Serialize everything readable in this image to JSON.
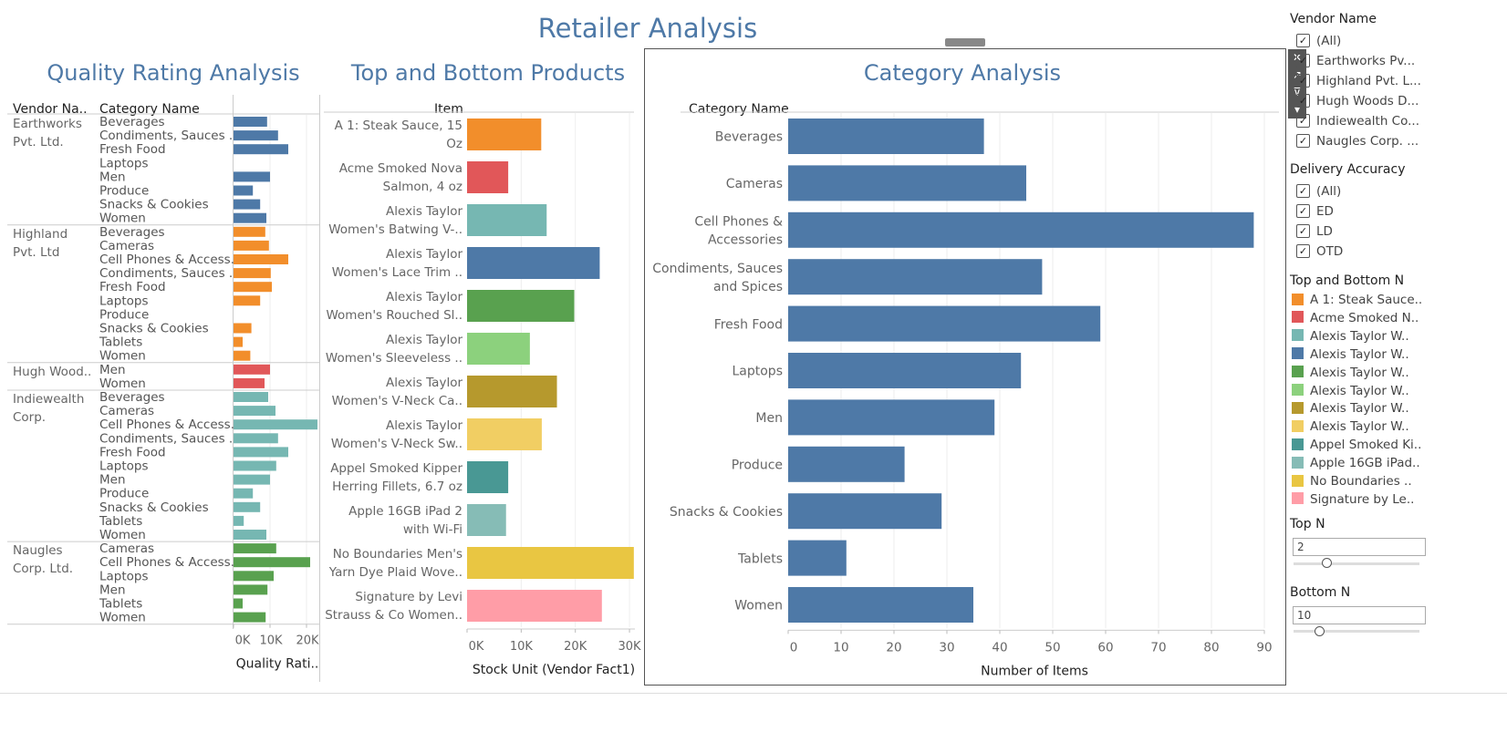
{
  "dashboard_title": "Retailer Analysis",
  "quality": {
    "title": "Quality Rating Analysis",
    "col_vendor": "Vendor Na..",
    "col_category": "Category Name",
    "axis_title": "Quality Rati..",
    "ticks": [
      "0K",
      "10K",
      "20K"
    ]
  },
  "topbottom": {
    "title": "Top and Bottom Products",
    "col_item": "Item",
    "axis_title": "Stock Unit (Vendor Fact1)",
    "ticks": [
      "0K",
      "10K",
      "20K",
      "30K"
    ]
  },
  "category": {
    "title": "Category Analysis",
    "col_category": "Category Name",
    "axis_title": "Number of Items",
    "ticks": [
      "0",
      "10",
      "20",
      "30",
      "40",
      "50",
      "60",
      "70",
      "80",
      "90"
    ]
  },
  "colors": {
    "title_blue": "#4e79a7",
    "bar_blue": "#4e79a7",
    "vendor": [
      "#4e79a7",
      "#f28e2b",
      "#e15759",
      "#76b7b2",
      "#59a14f"
    ]
  },
  "chart_data": [
    {
      "type": "bar",
      "orientation": "horizontal",
      "title": "Quality Rating Analysis",
      "xlabel": "Quality Rati..",
      "xlim": [
        0,
        23000
      ],
      "groups": [
        {
          "vendor": [
            "Earthworks",
            "Pvt. Ltd."
          ],
          "color": "#4e79a7",
          "categories": [
            "Beverages",
            "Condiments, Sauces ..",
            "Fresh Food",
            "Laptops",
            "Men",
            "Produce",
            "Snacks & Cookies",
            "Women"
          ],
          "values": [
            9200,
            12200,
            15000,
            0,
            10000,
            5300,
            7300,
            9000
          ]
        },
        {
          "vendor": [
            "Highland",
            "Pvt. Ltd"
          ],
          "color": "#f28e2b",
          "categories": [
            "Beverages",
            "Cameras",
            "Cell Phones & Access..",
            "Condiments, Sauces ..",
            "Fresh Food",
            "Laptops",
            "Produce",
            "Snacks & Cookies",
            "Tablets",
            "Women"
          ],
          "values": [
            8700,
            9700,
            15000,
            10200,
            10500,
            7300,
            0,
            4900,
            2500,
            4600
          ]
        },
        {
          "vendor": [
            "Hugh Wood.."
          ],
          "color": "#e15759",
          "categories": [
            "Men",
            "Women"
          ],
          "values": [
            10000,
            8500
          ]
        },
        {
          "vendor": [
            "Indiewealth",
            "Corp."
          ],
          "color": "#76b7b2",
          "categories": [
            "Beverages",
            "Cameras",
            "Cell Phones & Access..",
            "Condiments, Sauces ..",
            "Fresh Food",
            "Laptops",
            "Men",
            "Produce",
            "Snacks & Cookies",
            "Tablets",
            "Women"
          ],
          "values": [
            9500,
            11500,
            23000,
            12200,
            15000,
            11700,
            10000,
            5300,
            7300,
            2800,
            9000
          ]
        },
        {
          "vendor": [
            "Naugles",
            "Corp. Ltd."
          ],
          "color": "#59a14f",
          "categories": [
            "Cameras",
            "Cell Phones & Access..",
            "Laptops",
            "Men",
            "Tablets",
            "Women"
          ],
          "values": [
            11700,
            21000,
            11000,
            9300,
            2500,
            8800
          ]
        }
      ]
    },
    {
      "type": "bar",
      "orientation": "horizontal",
      "title": "Top and Bottom Products",
      "xlabel": "Stock Unit (Vendor Fact1)",
      "xlim": [
        0,
        31000
      ],
      "items": [
        [
          "A 1: Steak Sauce, 15",
          "Oz"
        ],
        [
          "Acme Smoked Nova",
          "Salmon, 4 oz"
        ],
        [
          "Alexis Taylor",
          "Women's Batwing V-.."
        ],
        [
          "Alexis Taylor",
          "Women's Lace Trim .."
        ],
        [
          "Alexis Taylor",
          "Women's Rouched Sl.."
        ],
        [
          "Alexis Taylor",
          "Women's Sleeveless .."
        ],
        [
          "Alexis Taylor",
          "Women's V-Neck Ca.."
        ],
        [
          "Alexis Taylor",
          "Women's V-Neck Sw.."
        ],
        [
          "Appel Smoked Kipper",
          "Herring Fillets, 6.7 oz"
        ],
        [
          "Apple 16GB iPad 2",
          "with Wi-Fi"
        ],
        [
          "No Boundaries Men's",
          "Yarn Dye Plaid Wove.."
        ],
        [
          "Signature by Levi",
          "Strauss & Co Women.."
        ]
      ],
      "values": [
        13700,
        7600,
        14700,
        24500,
        19800,
        11600,
        16600,
        13800,
        7600,
        7200,
        30800,
        24900
      ],
      "colors": [
        "#f28e2b",
        "#e15759",
        "#76b7b2",
        "#4e79a7",
        "#59a14f",
        "#8cd17d",
        "#b6992d",
        "#f1ce63",
        "#499894",
        "#86bcb6",
        "#e9c642",
        "#ff9da7"
      ]
    },
    {
      "type": "bar",
      "orientation": "horizontal",
      "title": "Category Analysis",
      "xlabel": "Number of Items",
      "ylabel": "Category Name",
      "xlim": [
        0,
        90
      ],
      "categories": [
        [
          "Beverages"
        ],
        [
          "Cameras"
        ],
        [
          "Cell Phones &",
          "Accessories"
        ],
        [
          "Condiments, Sauces",
          "and Spices"
        ],
        [
          "Fresh Food"
        ],
        [
          "Laptops"
        ],
        [
          "Men"
        ],
        [
          "Produce"
        ],
        [
          "Snacks & Cookies"
        ],
        [
          "Tablets"
        ],
        [
          "Women"
        ]
      ],
      "values": [
        37,
        45,
        88,
        48,
        59,
        44,
        39,
        22,
        29,
        11,
        35
      ],
      "color": "#4e79a7"
    }
  ],
  "filters": {
    "vendor": {
      "title": "Vendor Name",
      "items": [
        "(All)",
        "Earthworks Pv...",
        "Highland Pvt. L...",
        "Hugh Woods D...",
        "Indiewealth Co...",
        "Naugles Corp. ..."
      ]
    },
    "delivery": {
      "title": "Delivery Accuracy",
      "items": [
        "(All)",
        "ED",
        "LD",
        "OTD"
      ]
    },
    "legend": {
      "title": "Top and Bottom N",
      "items": [
        {
          "label": "A 1: Steak Sauce..",
          "color": "#f28e2b"
        },
        {
          "label": "Acme Smoked N..",
          "color": "#e15759"
        },
        {
          "label": "Alexis Taylor W..",
          "color": "#76b7b2"
        },
        {
          "label": "Alexis Taylor W..",
          "color": "#4e79a7"
        },
        {
          "label": "Alexis Taylor W..",
          "color": "#59a14f"
        },
        {
          "label": "Alexis Taylor W..",
          "color": "#8cd17d"
        },
        {
          "label": "Alexis Taylor W..",
          "color": "#b6992d"
        },
        {
          "label": "Alexis Taylor W..",
          "color": "#f1ce63"
        },
        {
          "label": "Appel Smoked Ki..",
          "color": "#499894"
        },
        {
          "label": "Apple 16GB iPad..",
          "color": "#86bcb6"
        },
        {
          "label": "No Boundaries ..",
          "color": "#e9c642"
        },
        {
          "label": "Signature by Le..",
          "color": "#ff9da7"
        }
      ]
    },
    "top_n": {
      "title": "Top N",
      "value": "2"
    },
    "bottom_n": {
      "title": "Bottom N",
      "value": "10"
    }
  }
}
